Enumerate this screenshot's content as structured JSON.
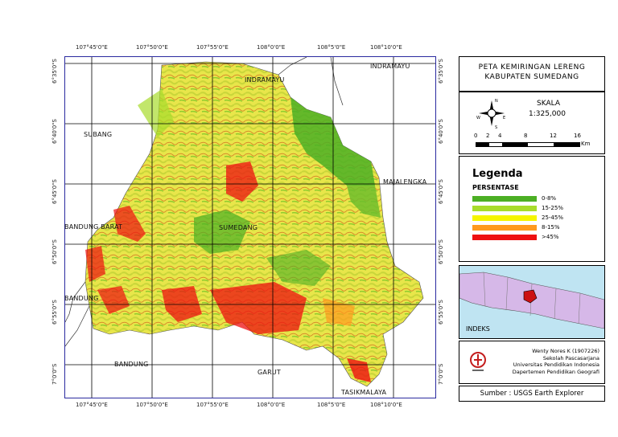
{
  "map": {
    "ticks_top": [
      "107°45'0\"E",
      "107°50'0\"E",
      "107°55'0\"E",
      "108°0'0\"E",
      "108°5'0\"E",
      "108°10'0\"E"
    ],
    "ticks_bottom": [
      "107°45'0\"E",
      "107°50'0\"E",
      "107°55'0\"E",
      "108°0'0\"E",
      "108°5'0\"E",
      "108°10'0\"E"
    ],
    "ticks_left": [
      "6°35'0\"S",
      "6°40'0\"S",
      "6°45'0\"S",
      "6°50'0\"S",
      "6°55'0\"S",
      "7°0'0\"S"
    ],
    "ticks_right": [
      "6°35'0\"S",
      "6°40'0\"S",
      "6°45'0\"S",
      "6°50'0\"S",
      "6°55'0\"S",
      "7°0'0\"S"
    ],
    "places": {
      "indramayu1": "INDRAMAYU",
      "indramayu2": "INDRAMAYU",
      "subang": "SUBANG",
      "majalengka": "MAJALENGKA",
      "bandung_barat": "BANDUNG BARAT",
      "sumedang": "SUMEDANG",
      "bandung1": "BANDUNG",
      "bandung2": "BANDUNG",
      "garut": "GARUT",
      "tasikmalaya": "TASIKMALAYA"
    }
  },
  "title": {
    "line1": "PETA KEMIRINGAN LERENG",
    "line2": "KABUPATEN SUMEDANG"
  },
  "scale": {
    "label": "SKALA",
    "value": "1:325,000",
    "compass": {
      "n": "N",
      "s": "S",
      "e": "E",
      "w": "W"
    },
    "ticks": [
      "0",
      "2",
      "4",
      "8",
      "12",
      "16"
    ],
    "unit": "Km"
  },
  "legend": {
    "heading": "Legenda",
    "subheading": "PERSENTASE",
    "items": [
      {
        "label": "0-8%",
        "color": "#4caf24"
      },
      {
        "label": "15-25%",
        "color": "#a8dc2c"
      },
      {
        "label": "25-45%",
        "color": "#f5f500"
      },
      {
        "label": "8-15%",
        "color": "#ff9a1e"
      },
      {
        "label": ">45%",
        "color": "#ee1010"
      }
    ]
  },
  "index": {
    "label": "INDEKS"
  },
  "credits": {
    "author": "Wenty Nores K (1907226)",
    "school": "Sekolah Pascasarjana",
    "university": "Universitas Pendidikan Indonesia",
    "department": "Dapertemen Pendidikan Geografi"
  },
  "source": "Sumber : USGS Earth Explorer"
}
